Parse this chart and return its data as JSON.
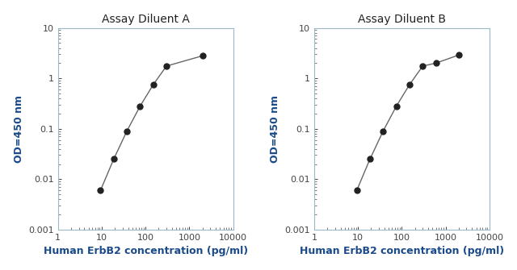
{
  "panel_A": {
    "title": "Assay Diluent A",
    "x": [
      9.375,
      18.75,
      37.5,
      75,
      150,
      300,
      2000
    ],
    "y": [
      0.006,
      0.025,
      0.09,
      0.28,
      0.75,
      1.75,
      2.8
    ]
  },
  "panel_B": {
    "title": "Assay Diluent B",
    "x": [
      9.375,
      18.75,
      37.5,
      75,
      150,
      300,
      600,
      2000
    ],
    "y": [
      0.006,
      0.025,
      0.09,
      0.28,
      0.75,
      1.75,
      2.0,
      2.9
    ]
  },
  "xlabel": "Human ErbB2 concentration (pg/ml)",
  "ylabel": "OD=450 nm",
  "xlim": [
    1,
    10000
  ],
  "ylim": [
    0.001,
    10
  ],
  "line_color": "#666666",
  "marker_color": "#222222",
  "marker_size": 5,
  "title_color": "#222222",
  "label_color": "#1a4a8a",
  "tick_color": "#444444",
  "background_color": "#ffffff",
  "axes_color": "#9ab8c8",
  "title_fontsize": 10,
  "label_fontsize": 9,
  "tick_fontsize": 8
}
